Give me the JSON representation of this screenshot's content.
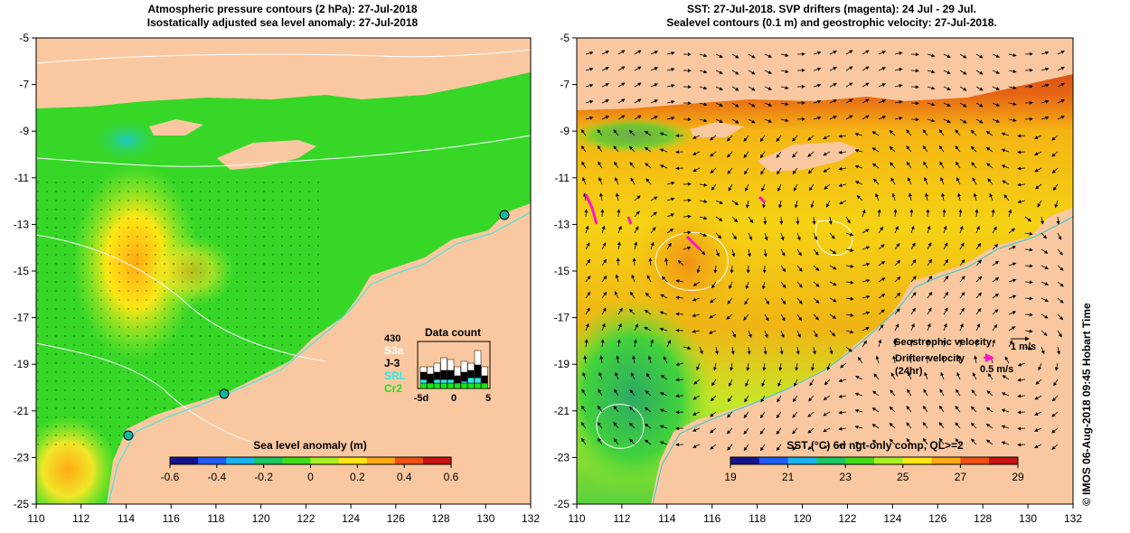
{
  "left_panel": {
    "title_line1": "Atmospheric pressure contours (2 hPa): 27-Jul-2018",
    "title_line2": "Isostatically adjusted sea level anomaly: 27-Jul-2018",
    "colorbar": {
      "label": "Sea level anomaly (m)",
      "ticks": [
        "-0.6",
        "-0.4",
        "-0.2",
        "0",
        "0.2",
        "0.4",
        "0.6"
      ],
      "colors": [
        "#14148c",
        "#1e5aff",
        "#19b4f0",
        "#19c864",
        "#41dc19",
        "#aaf028",
        "#ffe614",
        "#ffaa14",
        "#f05014",
        "#c81414"
      ]
    },
    "data_count": {
      "title": "Data count",
      "max_label": "430",
      "legend": [
        {
          "name": "S3a",
          "color": "#ffffff"
        },
        {
          "name": "J-3",
          "color": "#000000"
        },
        {
          "name": "SRL",
          "color": "#30e8e8"
        },
        {
          "name": "Cr2",
          "color": "#19e619"
        }
      ],
      "axis_ticks": [
        "-5d",
        "0",
        "5"
      ]
    }
  },
  "right_panel": {
    "title_line1": "SST: 27-Jul-2018. SVP drifters (magenta): 24 Jul - 29 Jul.",
    "title_line2": "Sealevel contours (0.1 m) and geostrophic velocity: 27-Jul-2018.",
    "colorbar": {
      "label": "SST (°C) 6d ngt-only comp, QL>=2",
      "ticks": [
        "19",
        "21",
        "23",
        "25",
        "27",
        "29"
      ],
      "colors": [
        "#14148c",
        "#1e5aff",
        "#19b4f0",
        "#19c864",
        "#41dc19",
        "#aaf028",
        "#ffe614",
        "#ffaa14",
        "#f05014",
        "#c81414"
      ]
    },
    "legend": {
      "geostrophic_label": "Geostrophic velocity",
      "geostrophic_scale": "1 m/s",
      "drifter_label_line1": "Drifter velocity",
      "drifter_label_line2": "(24hr)",
      "drifter_scale": "0.5 m/s"
    }
  },
  "axes": {
    "x_ticks": [
      "110",
      "112",
      "114",
      "116",
      "118",
      "120",
      "122",
      "124",
      "126",
      "128",
      "130",
      "132"
    ],
    "y_ticks": [
      "-5",
      "-7",
      "-9",
      "-11",
      "-13",
      "-15",
      "-17",
      "-19",
      "-21",
      "-23",
      "-25"
    ],
    "lon_range": [
      110,
      132
    ],
    "lat_range": [
      -25,
      -5
    ]
  },
  "credit": "© IMOS 06-Aug-2018 09:45 Hobart Time",
  "colors": {
    "land": "#fac8a0",
    "ocean_left": "#37d728",
    "sst_warm": "#f07814",
    "sst_mid": "#f5c814",
    "sst_cool": "#50d232"
  }
}
